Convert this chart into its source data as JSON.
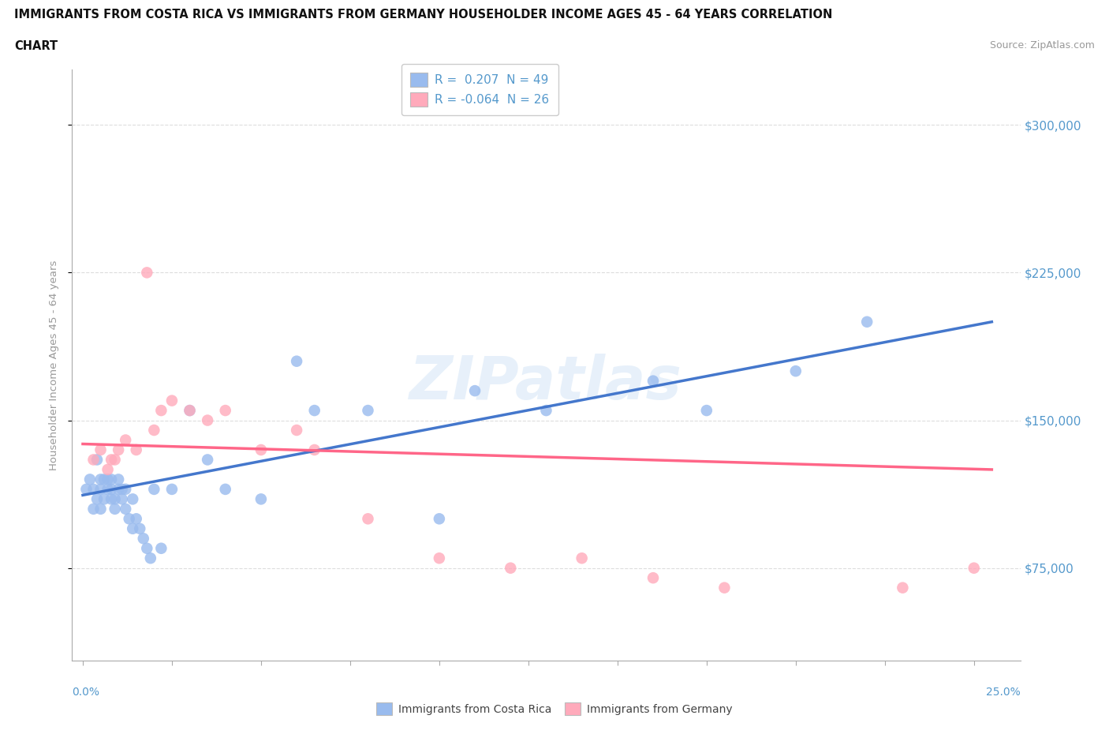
{
  "title_line1": "IMMIGRANTS FROM COSTA RICA VS IMMIGRANTS FROM GERMANY HOUSEHOLDER INCOME AGES 45 - 64 YEARS CORRELATION",
  "title_line2": "CHART",
  "source": "Source: ZipAtlas.com",
  "ylabel": "Householder Income Ages 45 - 64 years",
  "ytick_labels": [
    "$75,000",
    "$150,000",
    "$225,000",
    "$300,000"
  ],
  "ytick_values": [
    75000,
    150000,
    225000,
    300000
  ],
  "ylim": [
    28000,
    328000
  ],
  "xlim": [
    -0.003,
    0.263
  ],
  "legend_cr_r": "0.207",
  "legend_cr_n": "49",
  "legend_de_r": "-0.064",
  "legend_de_n": "26",
  "blue_scatter_color": "#99BBEE",
  "pink_scatter_color": "#FFAABB",
  "blue_line_color": "#4477CC",
  "pink_line_color": "#FF6688",
  "axis_label_color": "#5599CC",
  "tick_color": "#AAAAAA",
  "grid_color": "#DDDDDD",
  "ylabel_color": "#999999",
  "watermark": "ZIPatlas",
  "cr_x": [
    0.001,
    0.002,
    0.003,
    0.003,
    0.004,
    0.004,
    0.005,
    0.005,
    0.005,
    0.006,
    0.006,
    0.007,
    0.007,
    0.008,
    0.008,
    0.008,
    0.009,
    0.009,
    0.01,
    0.01,
    0.011,
    0.011,
    0.012,
    0.012,
    0.013,
    0.014,
    0.014,
    0.015,
    0.016,
    0.017,
    0.018,
    0.019,
    0.02,
    0.022,
    0.025,
    0.03,
    0.035,
    0.04,
    0.05,
    0.06,
    0.065,
    0.08,
    0.1,
    0.11,
    0.13,
    0.16,
    0.175,
    0.2,
    0.22
  ],
  "cr_y": [
    115000,
    120000,
    115000,
    105000,
    130000,
    110000,
    120000,
    115000,
    105000,
    120000,
    110000,
    115000,
    120000,
    110000,
    115000,
    120000,
    110000,
    105000,
    115000,
    120000,
    115000,
    110000,
    115000,
    105000,
    100000,
    110000,
    95000,
    100000,
    95000,
    90000,
    85000,
    80000,
    115000,
    85000,
    115000,
    155000,
    130000,
    115000,
    110000,
    180000,
    155000,
    155000,
    100000,
    165000,
    155000,
    170000,
    155000,
    175000,
    200000
  ],
  "de_x": [
    0.003,
    0.005,
    0.007,
    0.008,
    0.009,
    0.01,
    0.012,
    0.015,
    0.018,
    0.02,
    0.022,
    0.025,
    0.03,
    0.035,
    0.04,
    0.05,
    0.06,
    0.065,
    0.08,
    0.1,
    0.12,
    0.14,
    0.16,
    0.18,
    0.23,
    0.25
  ],
  "de_y": [
    130000,
    135000,
    125000,
    130000,
    130000,
    135000,
    140000,
    135000,
    225000,
    145000,
    155000,
    160000,
    155000,
    150000,
    155000,
    135000,
    145000,
    135000,
    100000,
    80000,
    75000,
    80000,
    70000,
    65000,
    65000,
    75000
  ],
  "cr_line_x0": 0.0,
  "cr_line_x1": 0.255,
  "cr_line_y0": 112000,
  "cr_line_y1": 200000,
  "de_line_x0": 0.0,
  "de_line_x1": 0.255,
  "de_line_y0": 138000,
  "de_line_y1": 125000
}
